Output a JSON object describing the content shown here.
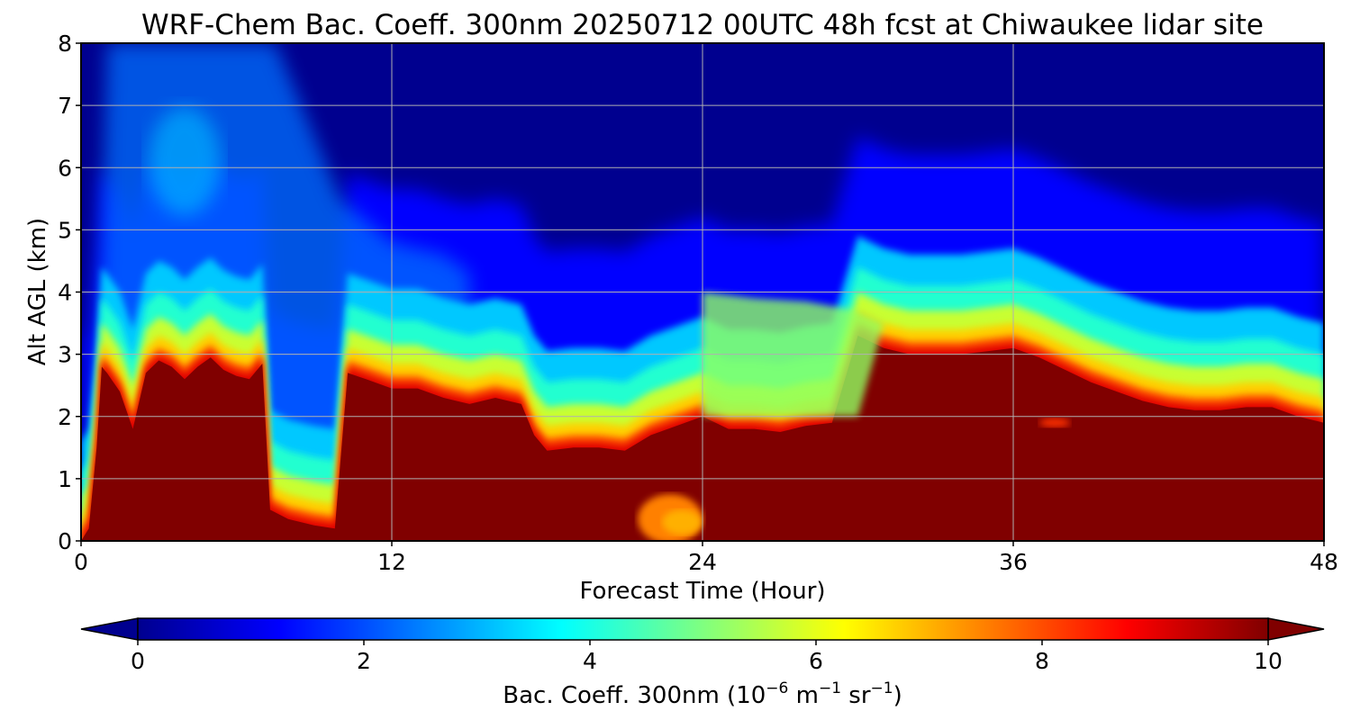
{
  "chart_data": {
    "type": "heatmap",
    "title": "WRF-Chem Bac. Coeff. 300nm  20250712 00UTC 48h fcst at Chiwaukee lidar site",
    "xlabel": "Forecast Time (Hour)",
    "ylabel": "Alt AGL (km)",
    "xlim": [
      0,
      48
    ],
    "ylim": [
      0,
      8
    ],
    "x_ticks": [
      "0",
      "12",
      "24",
      "36",
      "48"
    ],
    "y_ticks": [
      "0",
      "1",
      "2",
      "3",
      "4",
      "5",
      "6",
      "7",
      "8"
    ],
    "grid": true,
    "colormap": "jet",
    "colorbar": {
      "label_parts": [
        "Bac. Coeff. 300nm  (10",
        "−6",
        " m",
        "−1",
        " sr",
        "−1",
        ")"
      ],
      "range": [
        0,
        10
      ],
      "ticks": [
        "0",
        "2",
        "4",
        "6",
        "8",
        "10"
      ],
      "extend": "both",
      "orientation": "horizontal"
    },
    "high_value_layer_top_km": {
      "description_units": "km, top of the >=10 (saturated) region versus forecast hour",
      "x": [
        0,
        0.3,
        0.6,
        0.8,
        1.0,
        1.5,
        2.0,
        2.5,
        3.0,
        3.5,
        4.0,
        4.5,
        5.0,
        5.5,
        6.0,
        6.5,
        7.0,
        7.3,
        8.0,
        9.0,
        9.8,
        10.3,
        11.0,
        12.0,
        13.0,
        14.0,
        15.0,
        16.0,
        17.0,
        17.5,
        18.0,
        19.0,
        20.0,
        21.0,
        22.0,
        23.0,
        24.0,
        25.0,
        26.0,
        27.0,
        28.0,
        29.0,
        30.0,
        31.0,
        32.0,
        33.0,
        34.0,
        35.0,
        36.0,
        37.0,
        38.0,
        39.0,
        40.0,
        41.0,
        42.0,
        43.0,
        44.0,
        45.0,
        46.0,
        47.0,
        48.0
      ],
      "y": [
        0.0,
        0.2,
        1.5,
        2.8,
        2.7,
        2.4,
        1.8,
        2.7,
        2.9,
        2.8,
        2.6,
        2.8,
        2.95,
        2.75,
        2.65,
        2.6,
        2.85,
        0.5,
        0.35,
        0.25,
        0.2,
        2.7,
        2.6,
        2.45,
        2.45,
        2.3,
        2.2,
        2.3,
        2.2,
        1.7,
        1.45,
        1.5,
        1.5,
        1.45,
        1.7,
        1.85,
        2.0,
        1.8,
        1.8,
        1.75,
        1.85,
        1.9,
        3.3,
        3.1,
        3.0,
        3.0,
        3.0,
        3.05,
        3.1,
        2.95,
        2.75,
        2.55,
        2.4,
        2.25,
        2.15,
        2.1,
        2.1,
        2.15,
        2.15,
        2.0,
        1.9
      ]
    },
    "elevated_features": [
      {
        "name": "upper plume",
        "x": [
          24.0,
          26.0,
          28.0,
          30.0,
          31.0
        ],
        "y_top": [
          4.0,
          3.9,
          3.85,
          3.7,
          3.5
        ]
      },
      {
        "name": "weaker pocket",
        "x": [
          21.5,
          24.0
        ],
        "y": [
          0.0,
          0.8
        ]
      },
      {
        "name": "small elevated patch",
        "x": [
          37.0,
          38.2
        ],
        "y": [
          1.85,
          1.95
        ]
      }
    ]
  }
}
